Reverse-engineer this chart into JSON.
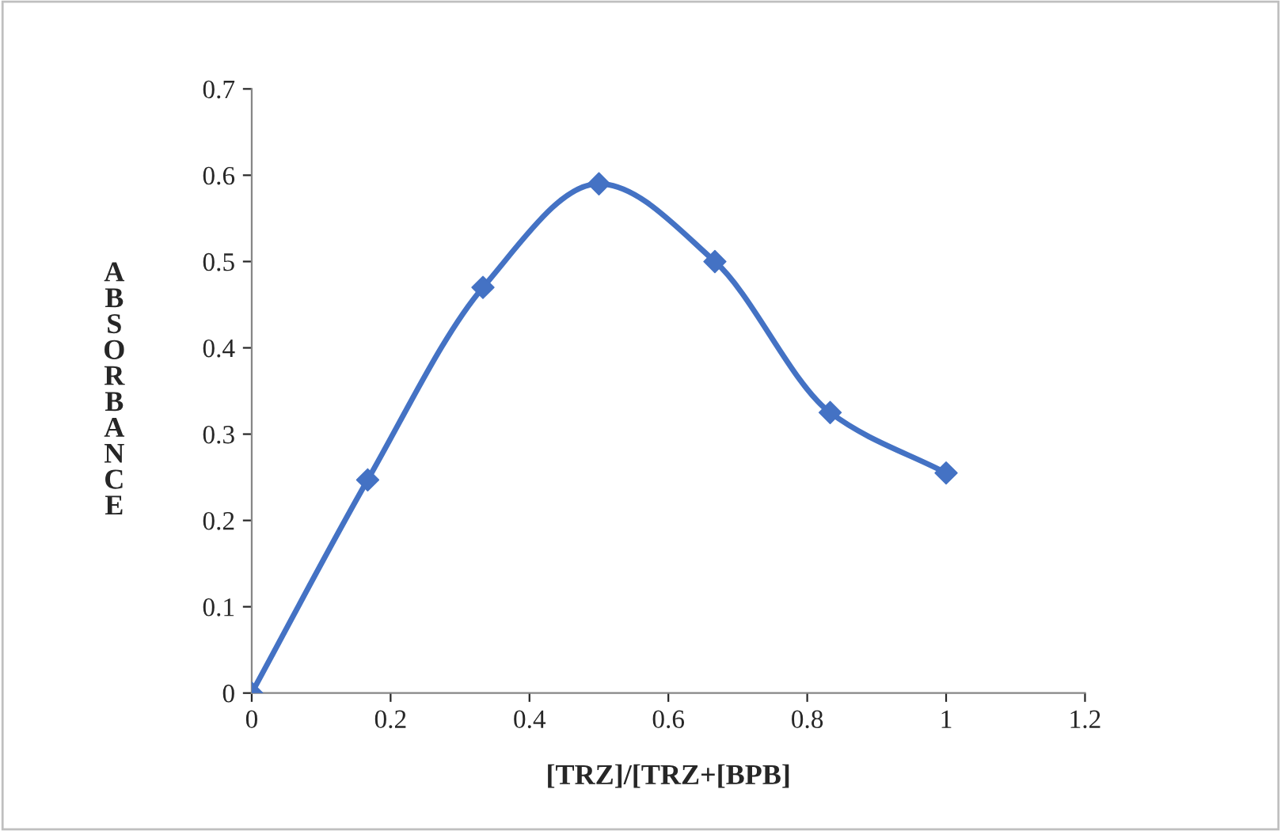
{
  "chart_data": {
    "type": "line",
    "xlabel": "[TRZ]/[TRZ+[BPB]",
    "ylabel": "ABSORBANCE",
    "x": [
      0,
      0.167,
      0.333,
      0.5,
      0.667,
      0.833,
      1
    ],
    "series": [
      {
        "color": "#4472c4",
        "values": [
          0,
          0.247,
          0.47,
          0.59,
          0.5,
          0.325,
          0.255
        ]
      }
    ],
    "xlim": [
      0,
      1.2
    ],
    "xticks": [
      0,
      0.2,
      0.4,
      0.6,
      0.8,
      1,
      1.2
    ],
    "ylim": [
      0,
      0.7
    ],
    "yticks": [
      0,
      0.1,
      0.2,
      0.3,
      0.4,
      0.5,
      0.6,
      0.7
    ],
    "marker": "diamond",
    "line_style": "solid",
    "grid": false,
    "legend": false
  }
}
